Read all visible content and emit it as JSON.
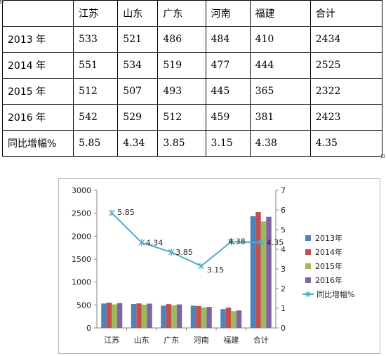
{
  "table": {
    "header": [
      "",
      "江苏",
      "山东",
      "广东",
      "河南",
      "福建",
      "合计"
    ],
    "rows": [
      [
        "2013 年",
        "533",
        "521",
        "486",
        "484",
        "410",
        "2434"
      ],
      [
        "2014 年",
        "551",
        "534",
        "519",
        "477",
        "444",
        "2525"
      ],
      [
        "2015 年",
        "512",
        "507",
        "493",
        "445",
        "365",
        "2322"
      ],
      [
        "2016 年",
        "542",
        "529",
        "512",
        "459",
        "381",
        "2423"
      ],
      [
        "同比增幅%",
        "5.85",
        "4.34",
        "3.85",
        "3.15",
        "4.38",
        "4.35"
      ]
    ]
  },
  "chart_data": {
    "type": "bar",
    "categories": [
      "江苏",
      "山东",
      "广东",
      "河南",
      "福建",
      "合计"
    ],
    "series": [
      {
        "name": "2013年",
        "values": [
          533,
          521,
          486,
          484,
          410,
          2434
        ],
        "color": "#4f81bd"
      },
      {
        "name": "2014年",
        "values": [
          551,
          534,
          519,
          477,
          444,
          2525
        ],
        "color": "#c0504d"
      },
      {
        "name": "2015年",
        "values": [
          512,
          507,
          493,
          445,
          365,
          2322
        ],
        "color": "#9bbb59"
      },
      {
        "name": "2016年",
        "values": [
          542,
          529,
          512,
          459,
          381,
          2423
        ],
        "color": "#8064a2"
      }
    ],
    "line_series": {
      "name": "同比增幅%",
      "type": "line",
      "axis": "secondary",
      "values": [
        5.85,
        4.34,
        3.85,
        3.15,
        4.38,
        4.35
      ],
      "labels": [
        "5.85",
        "4.34",
        "3.85",
        "3.15",
        "4.38",
        "4.35"
      ],
      "color": "#4bacc6",
      "marker": "asterisk"
    },
    "ylim": [
      0,
      3000
    ],
    "yticks": [
      "0",
      "500",
      "1000",
      "1500",
      "2000",
      "2500",
      "3000"
    ],
    "y2lim": [
      0,
      7
    ],
    "y2ticks": [
      "0",
      "1",
      "2",
      "3",
      "4",
      "5",
      "6",
      "7"
    ],
    "legend": "right",
    "grid": false
  }
}
